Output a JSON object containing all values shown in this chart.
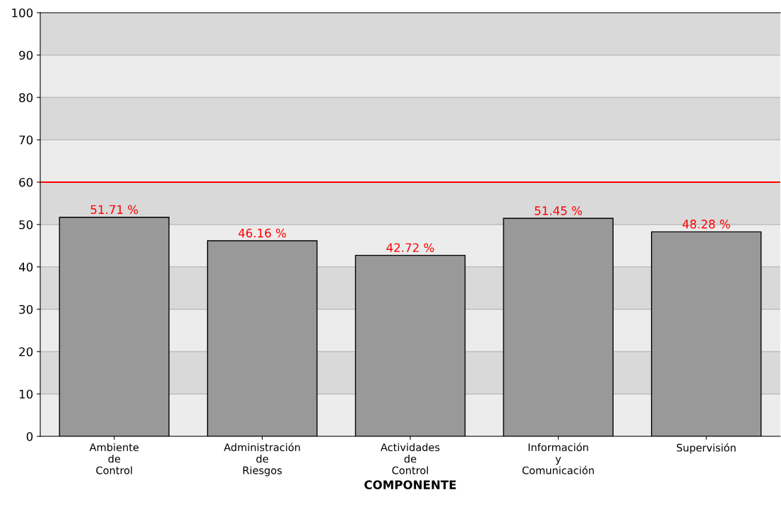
{
  "chart_data": {
    "type": "bar",
    "xlabel": "COMPONENTE",
    "categories": [
      "Ambiente\nde\nControl",
      "Administración\nde\nRiesgos",
      "Actividades\nde\nControl",
      "Información\ny\nComunicación",
      "Supervisión"
    ],
    "values": [
      51.71,
      46.16,
      42.72,
      51.45,
      48.28
    ],
    "value_labels": [
      "51.71 %",
      "46.16 %",
      "42.72 %",
      "51.45 %",
      "48.28 %"
    ],
    "color": "#999999",
    "ylim": [
      0,
      100
    ],
    "yticks": [
      0,
      10,
      20,
      30,
      40,
      50,
      60,
      70,
      80,
      90,
      100
    ],
    "grid": "y",
    "ref_lines": [
      {
        "axis": "y",
        "value": 60,
        "color": "#ff0000"
      }
    ],
    "bands": [
      {
        "axis": "y",
        "from": 10,
        "to": 20,
        "color": "#d9d9d9"
      },
      {
        "axis": "y",
        "from": 30,
        "to": 40,
        "color": "#d9d9d9"
      },
      {
        "axis": "y",
        "from": 50,
        "to": 60,
        "color": "#d9d9d9"
      },
      {
        "axis": "y",
        "from": 70,
        "to": 80,
        "color": "#d9d9d9"
      },
      {
        "axis": "y",
        "from": 90,
        "to": 100,
        "color": "#d9d9d9"
      }
    ]
  }
}
